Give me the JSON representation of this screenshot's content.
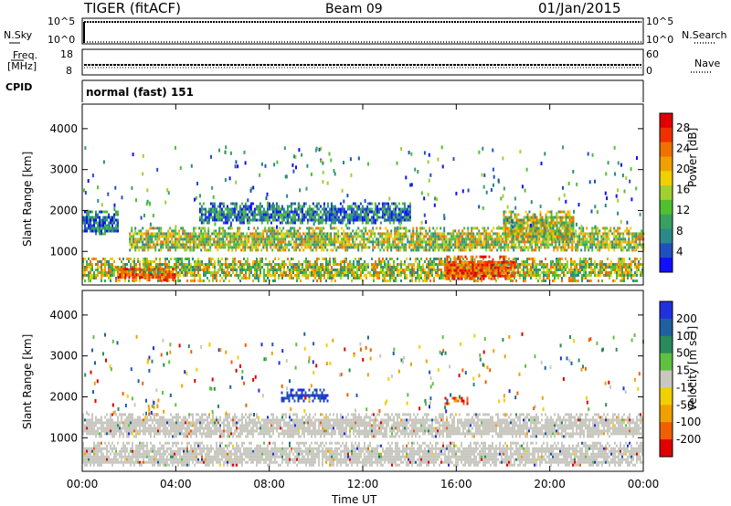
{
  "header": {
    "radar": "TIGER (fitACF)",
    "beam": "Beam 09",
    "date": "01/Jan/2015"
  },
  "noise_panel": {
    "left_label": "N.Sky",
    "right_label": "N.Search",
    "ticks_left": [
      "10^5",
      "10^0"
    ],
    "ticks_right": [
      "10^5",
      "10^0"
    ]
  },
  "freq_panel": {
    "left_label_1": "Freq.",
    "left_label_2": "[MHz]",
    "ticks_left": [
      "18",
      "8"
    ],
    "ticks_right": [
      "60",
      "0"
    ],
    "right_label": "Nave"
  },
  "cpid": {
    "label": "CPID",
    "value": "normal (fast) 151"
  },
  "chart_data": [
    {
      "type": "heatmap",
      "parameter": "Power",
      "ylabel": "Slant Range [km]",
      "ylim": [
        180,
        4600
      ],
      "yticks": [
        "1000",
        "2000",
        "3000",
        "4000"
      ],
      "xlim": [
        "00:00",
        "24:00"
      ],
      "colorbar": {
        "label": "Power [dB]",
        "ticks": [
          "4",
          "8",
          "12",
          "16",
          "20",
          "24",
          "28"
        ],
        "colors": [
          "#1010ff",
          "#2050c0",
          "#2a8a8a",
          "#3aa060",
          "#50c030",
          "#a0d030",
          "#f0d000",
          "#f0a000",
          "#f07000",
          "#f03000",
          "#e00000"
        ]
      },
      "bands": [
        {
          "from_hr": 0.0,
          "to_hr": 24.0,
          "range_min": 300,
          "range_max": 850,
          "level": "mid"
        },
        {
          "from_hr": 1.5,
          "to_hr": 4.0,
          "range_min": 300,
          "range_max": 600,
          "level": "high"
        },
        {
          "from_hr": 15.5,
          "to_hr": 18.5,
          "range_min": 300,
          "range_max": 900,
          "level": "high"
        },
        {
          "from_hr": 2.0,
          "to_hr": 24.0,
          "range_min": 1000,
          "range_max": 1600,
          "level": "mid"
        },
        {
          "from_hr": 5.0,
          "to_hr": 14.0,
          "range_min": 1700,
          "range_max": 2200,
          "level": "low"
        },
        {
          "from_hr": 18.0,
          "to_hr": 21.0,
          "range_min": 1300,
          "range_max": 2000,
          "level": "mid"
        },
        {
          "from_hr": 0.0,
          "to_hr": 1.5,
          "range_min": 1400,
          "range_max": 2000,
          "level": "low"
        }
      ]
    },
    {
      "type": "heatmap",
      "parameter": "Velocity",
      "ylabel": "Slant Range [km]",
      "ylim": [
        180,
        4600
      ],
      "yticks": [
        "1000",
        "2000",
        "3000",
        "4000"
      ],
      "xlim": [
        "00:00",
        "24:00"
      ],
      "colorbar": {
        "label": "Velocity [m s⁻¹]",
        "ticks": [
          "200",
          "100",
          "50",
          "15",
          "-15",
          "-50",
          "-100",
          "-200"
        ],
        "colors": [
          "#2030e0",
          "#2060a0",
          "#2a8a5a",
          "#60c040",
          "#c8c8c0",
          "#f0d000",
          "#f0a000",
          "#f06000",
          "#e00000"
        ]
      },
      "bands": [
        {
          "from_hr": 0.0,
          "to_hr": 24.0,
          "range_min": 300,
          "range_max": 900,
          "level": "ground"
        },
        {
          "from_hr": 0.0,
          "to_hr": 24.0,
          "range_min": 1000,
          "range_max": 1600,
          "level": "ground"
        },
        {
          "from_hr": 8.5,
          "to_hr": 10.5,
          "range_min": 1900,
          "range_max": 2200,
          "level": "positive"
        },
        {
          "from_hr": 15.5,
          "to_hr": 16.5,
          "range_min": 1800,
          "range_max": 2000,
          "level": "negative"
        }
      ]
    }
  ],
  "xaxis": {
    "ticks": [
      "00:00",
      "04:00",
      "08:00",
      "12:00",
      "16:00",
      "20:00",
      "00:00"
    ],
    "label": "Time UT"
  }
}
